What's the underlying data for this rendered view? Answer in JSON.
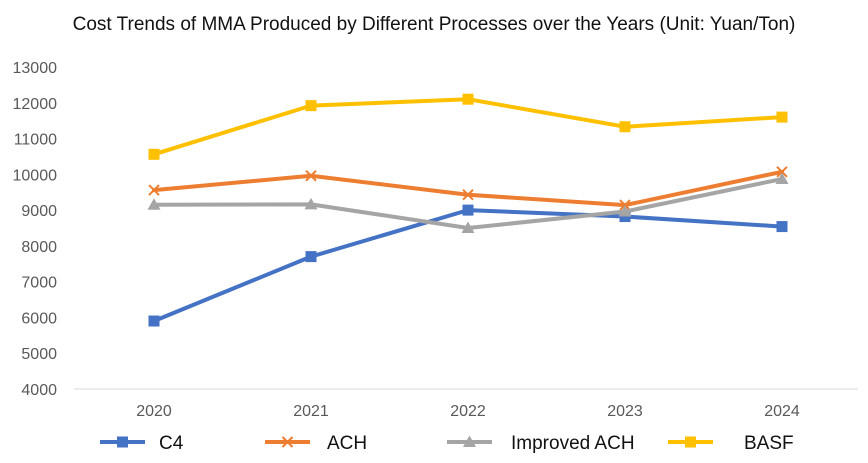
{
  "chart_data": {
    "type": "line",
    "title": "Cost Trends of MMA Produced by Different Processes over the Years (Unit: Yuan/Ton)",
    "xlabel": "",
    "ylabel": "",
    "categories": [
      "2020",
      "2021",
      "2022",
      "2023",
      "2024"
    ],
    "ylim": [
      4000,
      13000
    ],
    "yticks": [
      4000,
      5000,
      6000,
      7000,
      8000,
      9000,
      10000,
      11000,
      12000,
      13000
    ],
    "grid": false,
    "legend_position": "bottom",
    "series": [
      {
        "name": "C4",
        "values": [
          5900,
          7700,
          9000,
          8820,
          8540
        ],
        "color": "#4472C4",
        "marker": "square"
      },
      {
        "name": "ACH",
        "values": [
          9560,
          9960,
          9430,
          9140,
          10070
        ],
        "color": "#ED7D31",
        "marker": "x"
      },
      {
        "name": "Improved ACH",
        "values": [
          9150,
          9160,
          8500,
          8960,
          9870
        ],
        "color": "#A5A5A5",
        "marker": "triangle"
      },
      {
        "name": "BASF",
        "values": [
          10560,
          11920,
          12100,
          11330,
          11600
        ],
        "color": "#FFC000",
        "marker": "square"
      }
    ]
  }
}
